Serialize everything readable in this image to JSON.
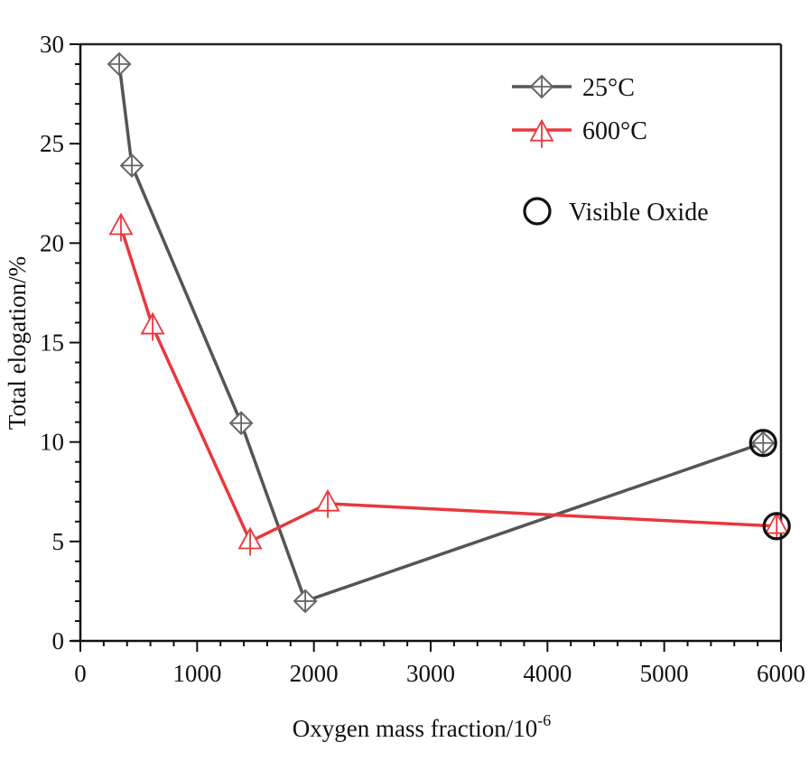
{
  "chart_data": {
    "type": "line",
    "title": "",
    "xlabel": "Oxygen mass fraction/10",
    "xlabel_superscript": "-6",
    "ylabel": "Total elogation/%",
    "xlim": [
      0,
      6000
    ],
    "ylim": [
      0,
      30
    ],
    "x_ticks": [
      0,
      1000,
      2000,
      3000,
      4000,
      5000,
      6000
    ],
    "x_tick_labels": [
      "0",
      "1000",
      "2000",
      "3000",
      "4000",
      "5000",
      "6000"
    ],
    "x_minor_step": 200,
    "y_ticks": [
      0,
      5,
      10,
      15,
      20,
      25,
      30
    ],
    "y_tick_labels": [
      "0",
      "5",
      "10",
      "15",
      "20",
      "25",
      "30"
    ],
    "y_minor_step": 1,
    "grid": false,
    "legend_position": "top-right",
    "series": [
      {
        "name": "25°C",
        "color": "#555555",
        "marker": "diamond-cross",
        "marker_color": "#666666",
        "x": [
          333,
          441,
          1377,
          1926,
          5847
        ],
        "y": [
          29.0,
          23.9,
          10.95,
          2.0,
          9.95
        ]
      },
      {
        "name": "600°C",
        "color": "#e8383d",
        "marker": "triangle-cross",
        "marker_color": "#e8383d",
        "x": [
          348,
          619,
          1454,
          2119,
          5963
        ],
        "y": [
          20.8,
          15.8,
          5.0,
          6.9,
          5.77
        ]
      }
    ],
    "annotations": [
      {
        "label": "Visible Oxide",
        "marker": "circle",
        "color": "#111111",
        "points": [
          {
            "series": "25°C",
            "x": 5847,
            "y": 9.95
          },
          {
            "series": "600°C",
            "x": 5963,
            "y": 5.77
          }
        ]
      }
    ]
  }
}
